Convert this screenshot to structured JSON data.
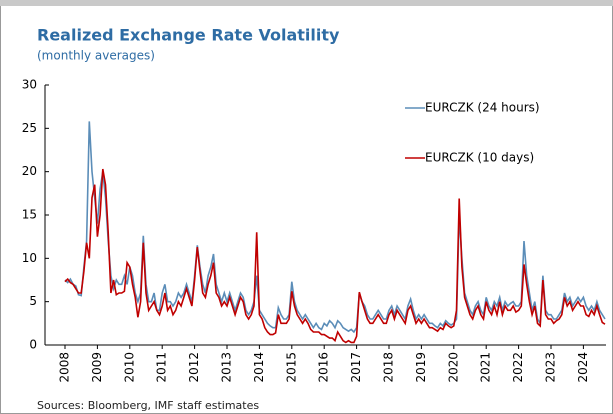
{
  "chart_data": {
    "type": "line",
    "title": "Realized Exchange Rate Volatility",
    "subtitle": "(monthly averages)",
    "source": "Sources: Bloomberg, IMF staff estimates",
    "legend": "upper right",
    "ylim": [
      0,
      30
    ],
    "yticks": [
      0,
      5,
      10,
      15,
      20,
      25,
      30
    ],
    "categories": [
      "2008",
      null,
      null,
      null,
      null,
      null,
      null,
      null,
      null,
      null,
      null,
      null,
      "2009",
      null,
      null,
      null,
      null,
      null,
      null,
      null,
      null,
      null,
      null,
      null,
      "2010",
      null,
      null,
      null,
      null,
      null,
      null,
      null,
      null,
      null,
      null,
      null,
      "2011",
      null,
      null,
      null,
      null,
      null,
      null,
      null,
      null,
      null,
      null,
      null,
      "2012",
      null,
      null,
      null,
      null,
      null,
      null,
      null,
      null,
      null,
      null,
      null,
      "2013",
      null,
      null,
      null,
      null,
      null,
      null,
      null,
      null,
      null,
      null,
      null,
      "2014",
      null,
      null,
      null,
      null,
      null,
      null,
      null,
      null,
      null,
      null,
      null,
      "2015",
      null,
      null,
      null,
      null,
      null,
      null,
      null,
      null,
      null,
      null,
      null,
      "2016",
      null,
      null,
      null,
      null,
      null,
      null,
      null,
      null,
      null,
      null,
      null,
      "2017",
      null,
      null,
      null,
      null,
      null,
      null,
      null,
      null,
      null,
      null,
      null,
      "2018",
      null,
      null,
      null,
      null,
      null,
      null,
      null,
      null,
      null,
      null,
      null,
      "2019",
      null,
      null,
      null,
      null,
      null,
      null,
      null,
      null,
      null,
      null,
      null,
      "2020",
      null,
      null,
      null,
      null,
      null,
      null,
      null,
      null,
      null,
      null,
      null,
      "2021",
      null,
      null,
      null,
      null,
      null,
      null,
      null,
      null,
      null,
      null,
      null,
      "2022",
      null,
      null,
      null,
      null,
      null,
      null,
      null,
      null,
      null,
      null,
      null,
      "2023",
      null,
      null,
      null,
      null,
      null,
      null,
      null,
      null,
      null,
      null,
      null,
      "2024",
      null,
      null,
      null,
      null,
      null,
      null,
      null,
      null
    ],
    "series": [
      {
        "name": "EURCZK (24 hours)",
        "color": "#5b8db8",
        "values": [
          7.5,
          7.2,
          7.6,
          7.0,
          6.8,
          5.8,
          5.7,
          9,
          12,
          25.8,
          20,
          17,
          14,
          18,
          20,
          17,
          12,
          8,
          6.5,
          7.5,
          7,
          7,
          8,
          7,
          9,
          8,
          6,
          5,
          6,
          12.6,
          7,
          5,
          5,
          6,
          4,
          4,
          6,
          7,
          5,
          5,
          4.5,
          5,
          6,
          5.5,
          6,
          7,
          6,
          5,
          8,
          11.5,
          9,
          7,
          6,
          8,
          9,
          10.5,
          7,
          6,
          5,
          6,
          5,
          6,
          5,
          4,
          5,
          6,
          5.5,
          4,
          3.5,
          4,
          5,
          8,
          4,
          3.5,
          3,
          2.5,
          2.2,
          2,
          2,
          4.3,
          3.5,
          3,
          3,
          3.5,
          7.3,
          5,
          4,
          3.5,
          3,
          3.5,
          3,
          2.5,
          2,
          2.5,
          2,
          1.8,
          2.5,
          2.2,
          2.8,
          2.5,
          2,
          2.8,
          2.5,
          2,
          1.8,
          1.6,
          1.8,
          1.5,
          2,
          6,
          5,
          4.5,
          3.5,
          3,
          3,
          3.5,
          4,
          3.5,
          3,
          3,
          4,
          4.5,
          3.5,
          4.5,
          4,
          3.5,
          3,
          4.5,
          5.3,
          4,
          3,
          3.5,
          3,
          3.5,
          3,
          2.5,
          2.5,
          2.2,
          2,
          2.5,
          2.2,
          2.8,
          2.5,
          2.3,
          2.5,
          3,
          15,
          10,
          6,
          5,
          4,
          3.5,
          4.5,
          5,
          4,
          3.5,
          5.5,
          4.5,
          4,
          5,
          4.5,
          5.5,
          4,
          5,
          4.5,
          4.8,
          5,
          4.5,
          4.5,
          5,
          12,
          8,
          6,
          4,
          5,
          3,
          2.5,
          8,
          4,
          3.5,
          3.5,
          3,
          3,
          3.5,
          4,
          6,
          5,
          5.5,
          4.5,
          5,
          5.5,
          5,
          5.5,
          4.5,
          4,
          4.5,
          4,
          5,
          4,
          3.5,
          3
        ]
      },
      {
        "name": "EURCZK (10 days)",
        "color": "#c00000",
        "values": [
          7.3,
          7.6,
          7.2,
          7.0,
          6.5,
          6.0,
          6.0,
          8.5,
          11.8,
          10,
          17,
          18.5,
          12.5,
          15,
          20.3,
          18.5,
          13,
          6,
          7.5,
          5.8,
          6,
          6,
          6.2,
          9.5,
          9,
          7,
          5.5,
          3.2,
          5,
          11.8,
          6,
          4,
          4.5,
          5,
          4,
          3.5,
          4.5,
          6,
          4,
          4.5,
          3.5,
          4,
          5,
          4.5,
          5.5,
          6.5,
          5.5,
          4.5,
          7.5,
          11.3,
          8.5,
          6,
          5.5,
          7,
          8,
          9.5,
          6,
          5.5,
          4.5,
          5,
          4.5,
          5.5,
          4.5,
          3.5,
          4.5,
          5.5,
          5,
          3.5,
          3,
          3.5,
          4.5,
          13,
          3.5,
          3,
          2,
          1.5,
          1.2,
          1.2,
          1.4,
          3.5,
          2.5,
          2.5,
          2.5,
          3,
          6.2,
          4.5,
          3.5,
          3,
          2.5,
          3,
          2.5,
          1.8,
          1.5,
          1.5,
          1.5,
          1.2,
          1.2,
          1,
          0.8,
          0.8,
          0.5,
          1.5,
          1,
          0.5,
          0.3,
          0.5,
          0.3,
          0.3,
          1,
          6.1,
          5,
          4,
          3,
          2.5,
          2.5,
          3,
          3.5,
          3,
          2.5,
          2.5,
          3.5,
          4,
          3,
          4,
          3.5,
          3,
          2.5,
          4,
          4.5,
          3.5,
          2.5,
          3,
          2.5,
          3,
          2.5,
          2,
          2,
          1.8,
          1.6,
          2,
          1.8,
          2.5,
          2.2,
          2,
          2.2,
          4,
          16.9,
          9,
          5.5,
          4.5,
          3.5,
          3,
          4,
          4.5,
          3.5,
          3,
          5,
          4,
          3.5,
          4.5,
          3.5,
          5,
          3.5,
          4.5,
          4,
          4,
          4.5,
          3.8,
          4,
          4.5,
          9.3,
          7,
          5,
          3.5,
          4.5,
          2.5,
          2.2,
          7.5,
          3.5,
          3,
          3,
          2.5,
          2.8,
          3,
          3.5,
          5.5,
          4.5,
          5,
          4,
          4.5,
          5,
          4.5,
          4.5,
          3.5,
          3.3,
          4,
          3.5,
          4.5,
          3.5,
          2.6,
          2.4
        ]
      }
    ]
  }
}
